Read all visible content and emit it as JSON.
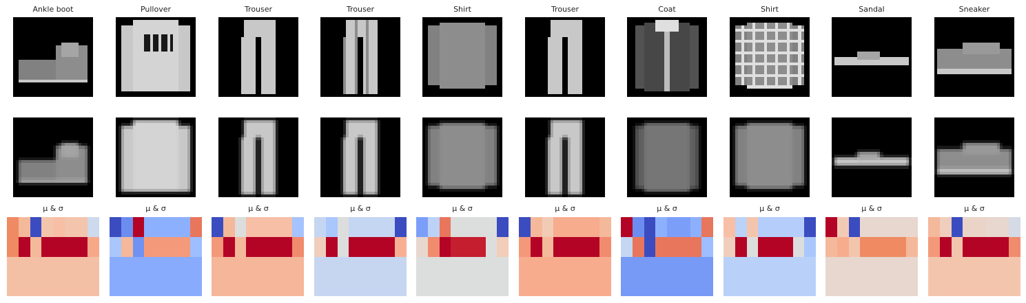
{
  "figure": {
    "row1_titles": [
      "Ankle boot",
      "Pullover",
      "Trouser",
      "Trouser",
      "Shirt",
      "Trouser",
      "Coat",
      "Shirt",
      "Sandal",
      "Sneaker"
    ],
    "heatmap_title": "μ & σ",
    "item_types": [
      "boot",
      "pullover",
      "trouser",
      "trouser2",
      "shirt",
      "trouser",
      "coat",
      "shirt2",
      "sandal",
      "sneaker"
    ],
    "heatmaps": [
      [
        "#ef8a62",
        "#f4b89a",
        "#3b4cc0",
        "#f4c5ad",
        "#f6bfa6",
        "#f4c5ad",
        "#f4c5ad",
        "#cdd9ec",
        "#ef8a62",
        "#b40426",
        "#f4b89a",
        "#b40426",
        "#b40426",
        "#b40426",
        "#b40426",
        "#f7a889",
        "#f4c0a5",
        "#f4c0a5",
        "#f4c0a5",
        "#f4c0a5",
        "#f4c0a5",
        "#f4c0a5",
        "#f4c0a5",
        "#f4c0a5",
        "#f4c0a5",
        "#f4c0a5",
        "#f4c0a5",
        "#f4c0a5",
        "#f4c0a5",
        "#f4c0a5",
        "#f4c0a5",
        "#f4c0a5"
      ],
      [
        "#3b4cc0",
        "#6b8df0",
        "#b40426",
        "#8db0fe",
        "#8db0fe",
        "#8db0fe",
        "#8db0fe",
        "#e8765c",
        "#aac7fd",
        "#f4b89a",
        "#6f92f3",
        "#f49a7b",
        "#f49a7b",
        "#f49a7b",
        "#f49a7b",
        "#9ebeff",
        "#88abfd",
        "#88abfd",
        "#88abfd",
        "#88abfd",
        "#88abfd",
        "#88abfd",
        "#88abfd",
        "#88abfd",
        "#88abfd",
        "#88abfd",
        "#88abfd",
        "#88abfd",
        "#88abfd",
        "#88abfd",
        "#88abfd",
        "#88abfd"
      ],
      [
        "#3b4cc0",
        "#f4b89a",
        "#dcdddd",
        "#f6bfa6",
        "#f6bfa6",
        "#f6bfa6",
        "#f6bfa6",
        "#a5c3fe",
        "#f4987a",
        "#b40426",
        "#f4b89a",
        "#b40426",
        "#b40426",
        "#b40426",
        "#b40426",
        "#f08b6e",
        "#f5b69a",
        "#f5b69a",
        "#f5b69a",
        "#f5b69a",
        "#f5b69a",
        "#f5b69a",
        "#f5b69a",
        "#f5b69a",
        "#f5b69a",
        "#f5b69a",
        "#f5b69a",
        "#f5b69a",
        "#f5b69a",
        "#f5b69a",
        "#f5b69a",
        "#f5b69a"
      ],
      [
        "#c5d6f2",
        "#aac7fd",
        "#dcdddd",
        "#c5d6f2",
        "#c5d6f2",
        "#c5d6f2",
        "#c5d6f2",
        "#3b4cc0",
        "#efcebd",
        "#b40426",
        "#dcdddd",
        "#b40426",
        "#b40426",
        "#b40426",
        "#b40426",
        "#f7b093",
        "#c6d6f1",
        "#c6d6f1",
        "#c6d6f1",
        "#c6d6f1",
        "#c6d6f1",
        "#c6d6f1",
        "#c6d6f1",
        "#c6d6f1",
        "#c6d6f1",
        "#c6d6f1",
        "#c6d6f1",
        "#c6d6f1",
        "#c6d6f1",
        "#c6d6f1",
        "#c6d6f1",
        "#c6d6f1"
      ],
      [
        "#7b9ff9",
        "#bcd2f7",
        "#e8765c",
        "#dcdddd",
        "#dcdddd",
        "#dcdddd",
        "#dcdddd",
        "#3b4cc0",
        "#e7d7ce",
        "#f08b6e",
        "#b40426",
        "#c41e2f",
        "#c41e2f",
        "#c41e2f",
        "#dcdddd",
        "#f1cdba",
        "#dcdddd",
        "#dcdddd",
        "#dcdddd",
        "#dcdddd",
        "#dcdddd",
        "#dcdddd",
        "#dcdddd",
        "#dcdddd",
        "#dcdddd",
        "#dcdddd",
        "#dcdddd",
        "#dcdddd",
        "#dcdddd",
        "#dcdddd",
        "#dcdddd",
        "#dcdddd"
      ],
      [
        "#3b4cc0",
        "#f4b89a",
        "#f2cbb7",
        "#f7ac8e",
        "#f7ac8e",
        "#f7ac8e",
        "#f7ac8e",
        "#f4b89a",
        "#f4987a",
        "#b40426",
        "#f4b89a",
        "#b40426",
        "#b40426",
        "#b40426",
        "#b40426",
        "#f08b6e",
        "#f7ac8e",
        "#f7ac8e",
        "#f7ac8e",
        "#f7ac8e",
        "#f7ac8e",
        "#f7ac8e",
        "#f7ac8e",
        "#f7ac8e",
        "#f7ac8e",
        "#f7ac8e",
        "#f7ac8e",
        "#f7ac8e",
        "#f7ac8e",
        "#f7ac8e",
        "#f7ac8e",
        "#f7ac8e"
      ],
      [
        "#b40426",
        "#6b8df0",
        "#3b4cc0",
        "#8db0fe",
        "#7b9ff9",
        "#7b9ff9",
        "#8db0fe",
        "#e8765c",
        "#c5d6f2",
        "#e8765c",
        "#3b4cc0",
        "#e8765c",
        "#e8765c",
        "#e8765c",
        "#e8765c",
        "#9ebeff",
        "#779af7",
        "#779af7",
        "#779af7",
        "#779af7",
        "#779af7",
        "#779af7",
        "#779af7",
        "#779af7",
        "#779af7",
        "#779af7",
        "#779af7",
        "#779af7",
        "#779af7",
        "#779af7",
        "#779af7",
        "#779af7"
      ],
      [
        "#f6bfa6",
        "#bcd2f7",
        "#f4c5ad",
        "#b5cdfa",
        "#b5cdfa",
        "#b5cdfa",
        "#b5cdfa",
        "#3b4cc0",
        "#efcebd",
        "#b40426",
        "#dcdddd",
        "#b40426",
        "#b40426",
        "#b40426",
        "#dcdddd",
        "#aac7fd",
        "#b9d0f9",
        "#b9d0f9",
        "#b9d0f9",
        "#b9d0f9",
        "#b9d0f9",
        "#b9d0f9",
        "#b9d0f9",
        "#b9d0f9",
        "#b9d0f9",
        "#b9d0f9",
        "#b9d0f9",
        "#b9d0f9",
        "#b9d0f9",
        "#b9d0f9",
        "#b9d0f9",
        "#b9d0f9"
      ],
      [
        "#b40426",
        "#f2cbb7",
        "#3b4cc0",
        "#e7d7ce",
        "#e7d7ce",
        "#e7d7ce",
        "#e7d7ce",
        "#e7d7ce",
        "#f4b89a",
        "#f7ac8e",
        "#f4c5ad",
        "#ef8a62",
        "#ef8a62",
        "#ef8a62",
        "#ef8a62",
        "#f4b89a",
        "#e7d7ce",
        "#e7d7ce",
        "#e7d7ce",
        "#e7d7ce",
        "#e7d7ce",
        "#e7d7ce",
        "#e7d7ce",
        "#e7d7ce",
        "#e7d7ce",
        "#e7d7ce",
        "#e7d7ce",
        "#e7d7ce",
        "#e7d7ce",
        "#e7d7ce",
        "#e7d7ce",
        "#e7d7ce"
      ],
      [
        "#f4b89a",
        "#efcebd",
        "#3b4cc0",
        "#ead4c8",
        "#ead4c8",
        "#e7d7ce",
        "#e7d7ce",
        "#d5dbe5",
        "#f4987a",
        "#b40426",
        "#f4c5ad",
        "#b40426",
        "#b40426",
        "#b40426",
        "#b40426",
        "#f08b6e",
        "#f4c5ad",
        "#f4c5ad",
        "#f4c5ad",
        "#f4c5ad",
        "#f4c5ad",
        "#f4c5ad",
        "#f4c5ad",
        "#f4c5ad",
        "#f4c5ad",
        "#f4c5ad",
        "#f4c5ad",
        "#f4c5ad",
        "#f4c5ad",
        "#f4c5ad",
        "#f4c5ad",
        "#f4c5ad"
      ]
    ]
  }
}
